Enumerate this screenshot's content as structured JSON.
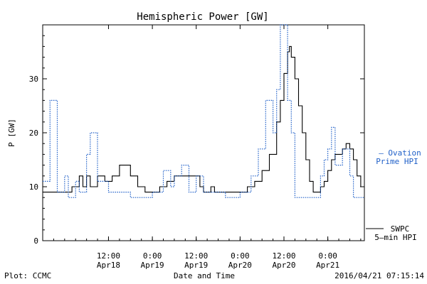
{
  "footer": {
    "plot_by": "Plot: CCMC",
    "timestamp": "2016/04/21 07:15:14"
  },
  "chart_data": {
    "type": "line",
    "title": "Hemispheric Power [GW]",
    "xlabel": "Date and Time",
    "ylabel": "P [GW]",
    "ylim": [
      0,
      40
    ],
    "yticks": [
      0,
      10,
      20,
      30
    ],
    "xlim": [
      "2016-04-17 18:00",
      "2016-04-21 10:00"
    ],
    "xticks": [
      {
        "t": "2016-04-18 12:00",
        "time": "12:00",
        "date": "Apr18"
      },
      {
        "t": "2016-04-19 00:00",
        "time": "0:00",
        "date": "Apr19"
      },
      {
        "t": "2016-04-19 12:00",
        "time": "12:00",
        "date": "Apr19"
      },
      {
        "t": "2016-04-20 00:00",
        "time": "0:00",
        "date": "Apr20"
      },
      {
        "t": "2016-04-20 12:00",
        "time": "12:00",
        "date": "Apr20"
      },
      {
        "t": "2016-04-21 00:00",
        "time": "0:00",
        "date": "Apr21"
      }
    ],
    "colors": {
      "swpc": "#000000",
      "ovation": "#2060c8"
    },
    "legend": {
      "ovation_line1": "— Ovation",
      "ovation_line2": "Prime HPI",
      "swpc_line1": "SWPC",
      "swpc_line2": "5–min HPI"
    },
    "series": [
      {
        "name": "SWPC 5-min HPI",
        "style": "solid",
        "points": [
          [
            "2016-04-17 18:00",
            9
          ],
          [
            "2016-04-18 01:00",
            9
          ],
          [
            "2016-04-18 02:00",
            10
          ],
          [
            "2016-04-18 04:00",
            12
          ],
          [
            "2016-04-18 05:00",
            10
          ],
          [
            "2016-04-18 06:00",
            12
          ],
          [
            "2016-04-18 07:00",
            10
          ],
          [
            "2016-04-18 09:00",
            12
          ],
          [
            "2016-04-18 11:00",
            11
          ],
          [
            "2016-04-18 13:00",
            12
          ],
          [
            "2016-04-18 15:00",
            14
          ],
          [
            "2016-04-18 18:00",
            12
          ],
          [
            "2016-04-18 20:00",
            10
          ],
          [
            "2016-04-18 22:00",
            9
          ],
          [
            "2016-04-19 00:00",
            9
          ],
          [
            "2016-04-19 02:00",
            10
          ],
          [
            "2016-04-19 04:00",
            11
          ],
          [
            "2016-04-19 06:00",
            12
          ],
          [
            "2016-04-19 12:00",
            12
          ],
          [
            "2016-04-19 13:00",
            10
          ],
          [
            "2016-04-19 14:00",
            9
          ],
          [
            "2016-04-19 16:00",
            10
          ],
          [
            "2016-04-19 17:00",
            9
          ],
          [
            "2016-04-19 18:00",
            9
          ],
          [
            "2016-04-19 22:00",
            9
          ],
          [
            "2016-04-20 00:00",
            9
          ],
          [
            "2016-04-20 02:00",
            10
          ],
          [
            "2016-04-20 04:00",
            11
          ],
          [
            "2016-04-20 06:00",
            13
          ],
          [
            "2016-04-20 08:00",
            16
          ],
          [
            "2016-04-20 10:00",
            22
          ],
          [
            "2016-04-20 11:00",
            26
          ],
          [
            "2016-04-20 12:00",
            31
          ],
          [
            "2016-04-20 13:00",
            35
          ],
          [
            "2016-04-20 13:30",
            36
          ],
          [
            "2016-04-20 14:00",
            34
          ],
          [
            "2016-04-20 15:00",
            30
          ],
          [
            "2016-04-20 16:00",
            25
          ],
          [
            "2016-04-20 17:00",
            20
          ],
          [
            "2016-04-20 18:00",
            15
          ],
          [
            "2016-04-20 19:00",
            11
          ],
          [
            "2016-04-20 20:00",
            9
          ],
          [
            "2016-04-20 21:00",
            9
          ],
          [
            "2016-04-20 22:00",
            10
          ],
          [
            "2016-04-20 23:00",
            11
          ],
          [
            "2016-04-21 00:00",
            13
          ],
          [
            "2016-04-21 01:00",
            15
          ],
          [
            "2016-04-21 02:00",
            16
          ],
          [
            "2016-04-21 03:00",
            16
          ],
          [
            "2016-04-21 04:00",
            17
          ],
          [
            "2016-04-21 05:00",
            18
          ],
          [
            "2016-04-21 06:00",
            17
          ],
          [
            "2016-04-21 07:00",
            15
          ],
          [
            "2016-04-21 08:00",
            12
          ],
          [
            "2016-04-21 09:00",
            10
          ]
        ]
      },
      {
        "name": "Ovation Prime HPI",
        "style": "dotted",
        "points": [
          [
            "2016-04-17 18:00",
            11
          ],
          [
            "2016-04-17 20:00",
            26
          ],
          [
            "2016-04-17 22:00",
            9
          ],
          [
            "2016-04-18 00:00",
            12
          ],
          [
            "2016-04-18 01:00",
            8
          ],
          [
            "2016-04-18 03:00",
            11
          ],
          [
            "2016-04-18 04:00",
            9
          ],
          [
            "2016-04-18 06:00",
            16
          ],
          [
            "2016-04-18 07:00",
            20
          ],
          [
            "2016-04-18 09:00",
            11
          ],
          [
            "2016-04-18 12:00",
            9
          ],
          [
            "2016-04-18 16:00",
            9
          ],
          [
            "2016-04-18 18:00",
            8
          ],
          [
            "2016-04-19 00:00",
            9
          ],
          [
            "2016-04-19 03:00",
            13
          ],
          [
            "2016-04-19 05:00",
            10
          ],
          [
            "2016-04-19 06:00",
            12
          ],
          [
            "2016-04-19 08:00",
            14
          ],
          [
            "2016-04-19 10:00",
            9
          ],
          [
            "2016-04-19 12:00",
            12
          ],
          [
            "2016-04-19 14:00",
            9
          ],
          [
            "2016-04-19 18:00",
            9
          ],
          [
            "2016-04-19 20:00",
            8
          ],
          [
            "2016-04-20 00:00",
            9
          ],
          [
            "2016-04-20 03:00",
            12
          ],
          [
            "2016-04-20 05:00",
            17
          ],
          [
            "2016-04-20 07:00",
            26
          ],
          [
            "2016-04-20 09:00",
            20
          ],
          [
            "2016-04-20 10:00",
            28
          ],
          [
            "2016-04-20 11:00",
            40
          ],
          [
            "2016-04-20 12:00",
            40
          ],
          [
            "2016-04-20 13:00",
            26
          ],
          [
            "2016-04-20 14:00",
            20
          ],
          [
            "2016-04-20 15:00",
            8
          ],
          [
            "2016-04-20 20:00",
            8
          ],
          [
            "2016-04-20 22:00",
            12
          ],
          [
            "2016-04-20 23:00",
            15
          ],
          [
            "2016-04-21 00:00",
            17
          ],
          [
            "2016-04-21 01:00",
            21
          ],
          [
            "2016-04-21 02:00",
            14
          ],
          [
            "2016-04-21 04:00",
            17
          ],
          [
            "2016-04-21 06:00",
            12
          ],
          [
            "2016-04-21 07:00",
            8
          ],
          [
            "2016-04-21 10:00",
            8
          ]
        ]
      }
    ]
  }
}
